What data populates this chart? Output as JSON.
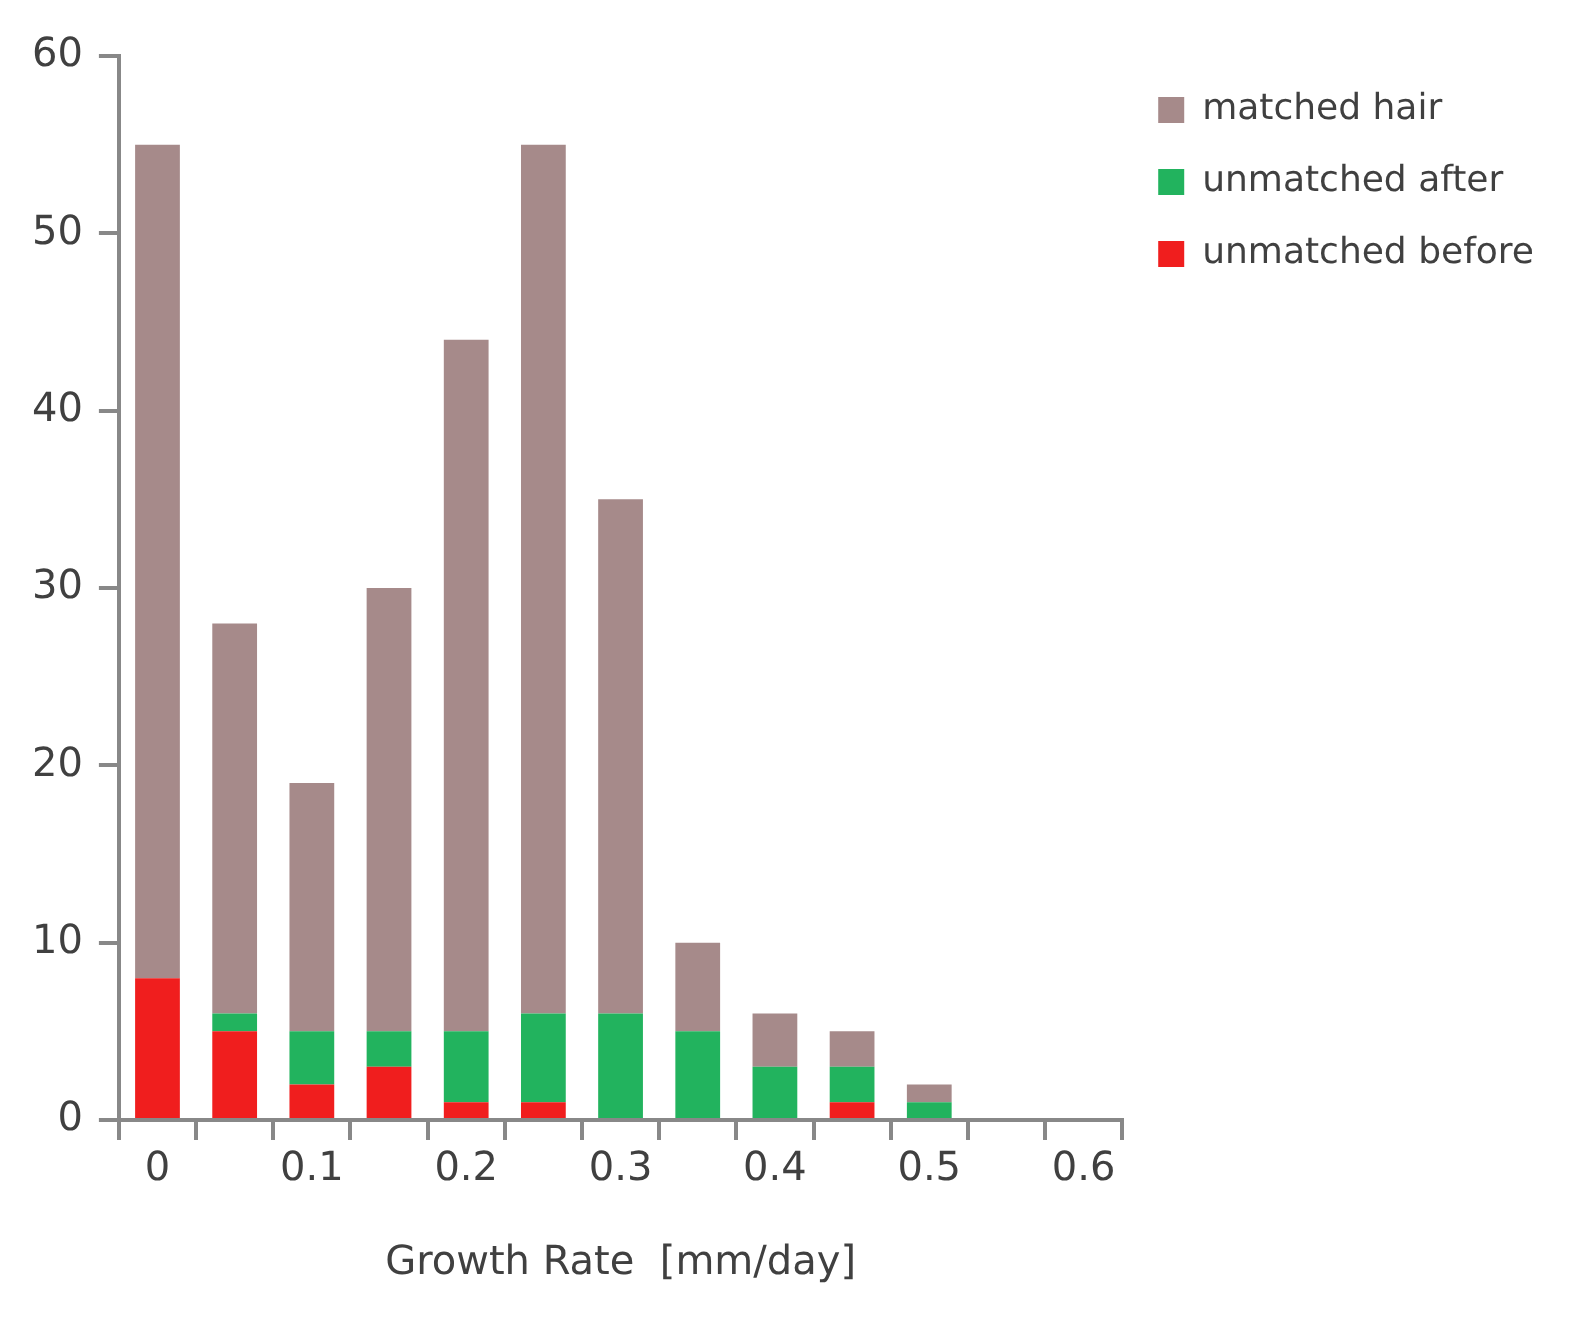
{
  "chart_data": {
    "type": "bar",
    "stacked": true,
    "xlabel": "Growth Rate  [mm/day]",
    "categories": [
      "0",
      null,
      "0.1",
      null,
      "0.2",
      null,
      "0.3",
      null,
      "0.4",
      null,
      "0.5",
      null,
      "0.6"
    ],
    "series": [
      {
        "name": "unmatched before",
        "color": "#f01e1e",
        "values": [
          8,
          5,
          2,
          3,
          1,
          1,
          0,
          0,
          0,
          1,
          0,
          null,
          null
        ]
      },
      {
        "name": "unmatched after",
        "color": "#22b35e",
        "values": [
          0,
          1,
          3,
          2,
          4,
          5,
          6,
          5,
          3,
          2,
          1,
          null,
          null
        ]
      },
      {
        "name": "matched hair",
        "color": "#a68a8a",
        "values": [
          47,
          22,
          14,
          25,
          39,
          49,
          29,
          5,
          3,
          2,
          1,
          null,
          null
        ]
      }
    ],
    "ylim": [
      0,
      60
    ],
    "yticks": [
      0,
      10,
      20,
      30,
      40,
      50,
      60
    ],
    "grid": false,
    "legend": "top right"
  }
}
